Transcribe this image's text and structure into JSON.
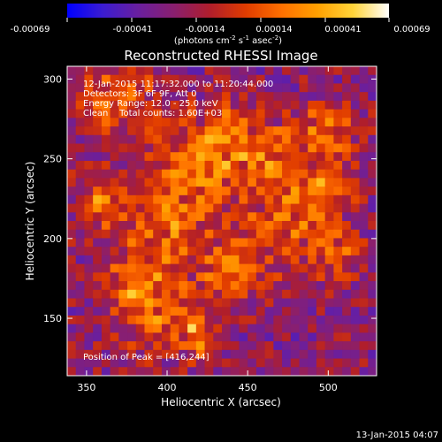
{
  "colorbar": {
    "tick_labels": [
      "-0.00069",
      "-0.00041",
      "-0.00014",
      "0.00014",
      "0.00041",
      "0.00069"
    ],
    "units": "(photons cm",
    "units_sup1": "-2",
    "units_mid": " s",
    "units_sup2": "-1",
    "units_mid2": " asec",
    "units_sup3": "-2",
    "units_end": ")",
    "range": [
      -0.00069,
      0.00069
    ],
    "palette": [
      "#0000ff",
      "#3b1cd0",
      "#6a1f9e",
      "#8a1f6e",
      "#b01e2b",
      "#e03c00",
      "#ff7000",
      "#ffa000",
      "#ffd43a",
      "#ffffff"
    ]
  },
  "chart_data": {
    "type": "heatmap",
    "title": "Reconstructed RHESSI Image",
    "xlabel": "Heliocentric X (arcsec)",
    "ylabel": "Heliocentric Y (arcsec)",
    "xlim": [
      338,
      530
    ],
    "ylim": [
      114,
      308
    ],
    "x_ticks": [
      350,
      400,
      450,
      500
    ],
    "y_ticks": [
      150,
      200,
      250,
      300
    ],
    "annotations": [
      "12-Jan-2015 11:17:32.000 to 11:20:44.000",
      "Detectors: 3F 6F 9F, Att 0",
      "Energy Range: 12.0 - 25.0 keV",
      "Clean    Total counts: 1.60E+03"
    ],
    "peak_label": "Position of Peak = [416,244]",
    "peak": [
      416,
      244
    ],
    "grid_cells": [
      36,
      36
    ]
  },
  "footer": {
    "timestamp": "13-Jan-2015 04:07"
  }
}
